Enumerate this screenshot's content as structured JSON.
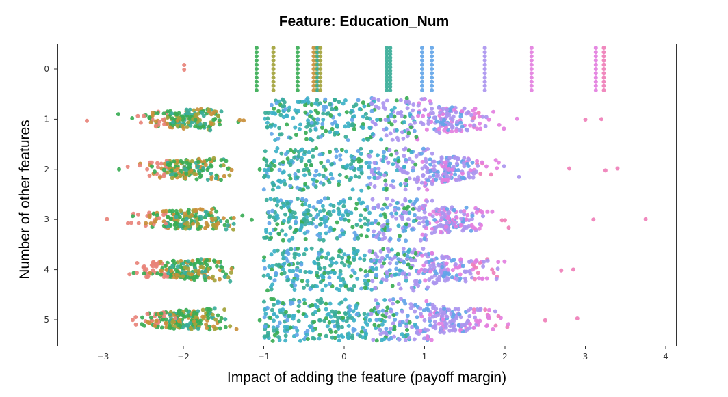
{
  "chart_data": {
    "type": "scatter",
    "subtype": "swarm",
    "title": "Feature: Education_Num",
    "xlabel": "Impact of adding the feature (payoff margin)",
    "ylabel": "Number of other features",
    "xlim": [
      -3.5,
      4.1
    ],
    "categories": [
      "0",
      "1",
      "2",
      "3",
      "4",
      "5"
    ],
    "x_ticks": [
      -3,
      -2,
      -1,
      0,
      1,
      2,
      3,
      4
    ],
    "x_tick_labels": [
      "−3",
      "−2",
      "−1",
      "0",
      "1",
      "2",
      "3",
      "4"
    ],
    "grid": false,
    "legend": "none",
    "palette": [
      "#e8837a",
      "#c98f3a",
      "#a3a33b",
      "#3aad55",
      "#3aad98",
      "#3db1c7",
      "#63a5e8",
      "#ab95ef",
      "#e37fe0",
      "#ef7fb8"
    ],
    "series": [
      {
        "category": "0",
        "points": [
          {
            "x": -1.09,
            "color": "#3aad55"
          },
          {
            "x": -0.88,
            "color": "#a3a33b"
          },
          {
            "x": -0.58,
            "color": "#3aad55"
          },
          {
            "x": -0.38,
            "color": "#c98f3a"
          },
          {
            "x": -0.33,
            "color": "#3aad98"
          },
          {
            "x": 0.53,
            "color": "#3aad98"
          },
          {
            "x": 0.97,
            "color": "#63a5e8"
          },
          {
            "x": 1.09,
            "color": "#63a5e8"
          },
          {
            "x": 1.75,
            "color": "#ab95ef"
          },
          {
            "x": 2.33,
            "color": "#e37fe0"
          },
          {
            "x": 3.13,
            "color": "#e37fe0"
          },
          {
            "x": 3.23,
            "color": "#ef7fb8"
          },
          {
            "x": -1.99,
            "color": "#e8837a"
          }
        ]
      },
      {
        "category": "1",
        "points": [
          {
            "x": -3.2,
            "color": "#e8837a"
          },
          {
            "x": -2.42,
            "color": "#3aad55"
          },
          {
            "x": -2.25,
            "color": "#e8837a"
          },
          {
            "x": -1.85,
            "color": "#3aad55"
          },
          {
            "x": -1.55,
            "color": "#3aad55"
          },
          {
            "x": -1.3,
            "color": "#c98f3a"
          },
          {
            "x": -0.95,
            "color": "#3aad98"
          },
          {
            "x": -0.45,
            "color": "#3db1c7"
          },
          {
            "x": 0.1,
            "color": "#63a5e8"
          },
          {
            "x": 0.55,
            "color": "#63a5e8"
          },
          {
            "x": 0.85,
            "color": "#ab95ef"
          },
          {
            "x": 1.35,
            "color": "#ab95ef"
          },
          {
            "x": 1.8,
            "color": "#e37fe0"
          },
          {
            "x": 2.15,
            "color": "#e37fe0"
          },
          {
            "x": 3.0,
            "color": "#ef7fb8"
          },
          {
            "x": 3.2,
            "color": "#ef7fb8"
          }
        ]
      },
      {
        "category": "2",
        "points": [
          {
            "x": -2.8,
            "color": "#3aad55"
          },
          {
            "x": -2.45,
            "color": "#e8837a"
          },
          {
            "x": -2.1,
            "color": "#c98f3a"
          },
          {
            "x": -1.7,
            "color": "#3aad55"
          },
          {
            "x": -1.4,
            "color": "#c98f3a"
          },
          {
            "x": -1.05,
            "color": "#3aad55"
          },
          {
            "x": -0.5,
            "color": "#3aad98"
          },
          {
            "x": 0.1,
            "color": "#63a5e8"
          },
          {
            "x": 0.7,
            "color": "#ab95ef"
          },
          {
            "x": 1.3,
            "color": "#e37fe0"
          },
          {
            "x": 1.9,
            "color": "#e37fe0"
          },
          {
            "x": 2.8,
            "color": "#ef7fb8"
          },
          {
            "x": 3.25,
            "color": "#ef7fb8"
          },
          {
            "x": 3.4,
            "color": "#ef7fb8"
          }
        ]
      },
      {
        "category": "3",
        "points": [
          {
            "x": -2.95,
            "color": "#e8837a"
          },
          {
            "x": -2.3,
            "color": "#e8837a"
          },
          {
            "x": -1.9,
            "color": "#3aad55"
          },
          {
            "x": -1.5,
            "color": "#c98f3a"
          },
          {
            "x": -1.15,
            "color": "#3aad55"
          },
          {
            "x": -0.5,
            "color": "#3aad98"
          },
          {
            "x": 0.2,
            "color": "#3db1c7"
          },
          {
            "x": 0.8,
            "color": "#ab95ef"
          },
          {
            "x": 1.4,
            "color": "#e37fe0"
          },
          {
            "x": 2.0,
            "color": "#ef7fb8"
          },
          {
            "x": 3.1,
            "color": "#ef7fb8"
          },
          {
            "x": 3.75,
            "color": "#ef7fb8"
          }
        ]
      },
      {
        "category": "4",
        "points": [
          {
            "x": -2.15,
            "color": "#c98f3a"
          },
          {
            "x": -1.85,
            "color": "#a3a33b"
          },
          {
            "x": -1.4,
            "color": "#c98f3a"
          },
          {
            "x": -0.9,
            "color": "#3aad55"
          },
          {
            "x": -0.3,
            "color": "#3aad98"
          },
          {
            "x": 0.4,
            "color": "#3db1c7"
          },
          {
            "x": 1.0,
            "color": "#ab95ef"
          },
          {
            "x": 1.6,
            "color": "#e37fe0"
          },
          {
            "x": 2.7,
            "color": "#ef7fb8"
          },
          {
            "x": 2.85,
            "color": "#ef7fb8"
          }
        ]
      },
      {
        "category": "5",
        "points": [
          {
            "x": -2.63,
            "color": "#e8837a"
          },
          {
            "x": -2.1,
            "color": "#e8837a"
          },
          {
            "x": -1.6,
            "color": "#a3a33b"
          },
          {
            "x": -1.05,
            "color": "#3aad55"
          },
          {
            "x": -0.3,
            "color": "#3aad98"
          },
          {
            "x": 0.5,
            "color": "#3db1c7"
          },
          {
            "x": 1.0,
            "color": "#ab95ef"
          },
          {
            "x": 1.8,
            "color": "#e37fe0"
          },
          {
            "x": 2.5,
            "color": "#ef7fb8"
          },
          {
            "x": 2.9,
            "color": "#ef7fb8"
          }
        ]
      }
    ]
  }
}
